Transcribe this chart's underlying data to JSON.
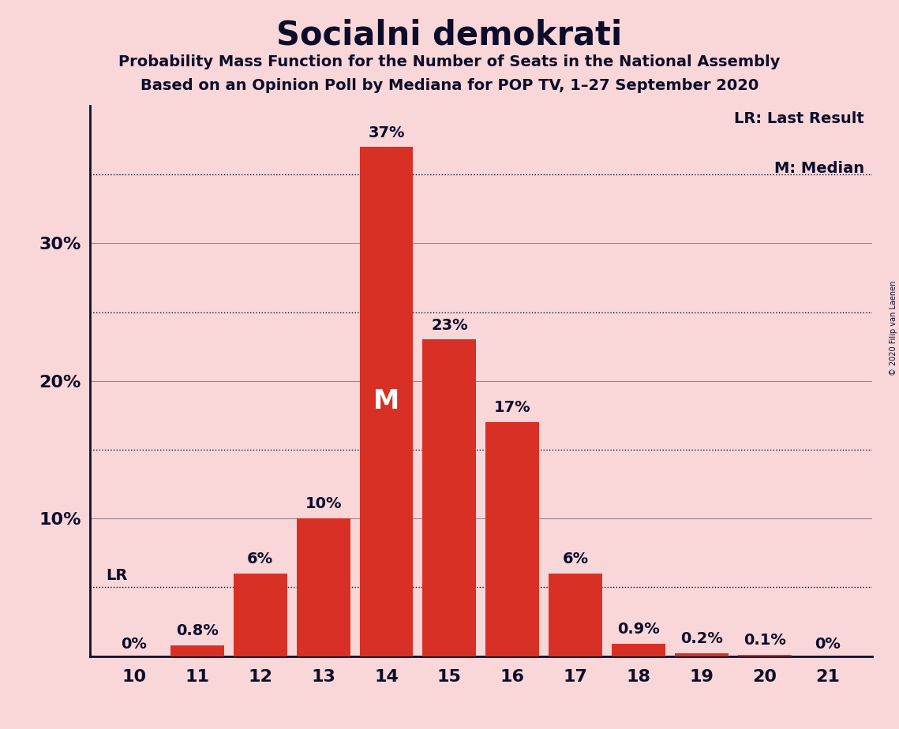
{
  "title": "Socialni demokrati",
  "subtitle1": "Probability Mass Function for the Number of Seats in the National Assembly",
  "subtitle2": "Based on an Opinion Poll by Mediana for POP TV, 1–27 September 2020",
  "copyright": "© 2020 Filip van Laenen",
  "categories": [
    10,
    11,
    12,
    13,
    14,
    15,
    16,
    17,
    18,
    19,
    20,
    21
  ],
  "values": [
    0.0,
    0.8,
    6.0,
    10.0,
    37.0,
    23.0,
    17.0,
    6.0,
    0.9,
    0.2,
    0.1,
    0.0
  ],
  "bar_color": "#D93025",
  "background_color": "#F9D7D9",
  "text_color": "#0D0D2B",
  "bar_labels": [
    "0%",
    "0.8%",
    "6%",
    "10%",
    "37%",
    "23%",
    "17%",
    "6%",
    "0.9%",
    "0.2%",
    "0.1%",
    "0%"
  ],
  "median_seat": 14,
  "median_label": "M",
  "lr_value": 5.0,
  "lr_label": "LR",
  "legend_lr": "LR: Last Result",
  "legend_m": "M: Median",
  "dotted_lines": [
    5,
    15,
    25,
    35
  ],
  "solid_lines": [
    10,
    20,
    30
  ],
  "ylim": [
    0,
    40
  ],
  "title_fontsize": 30,
  "subtitle_fontsize": 14,
  "tick_fontsize": 16,
  "label_fontsize": 14,
  "legend_fontsize": 14,
  "median_fontsize": 24
}
